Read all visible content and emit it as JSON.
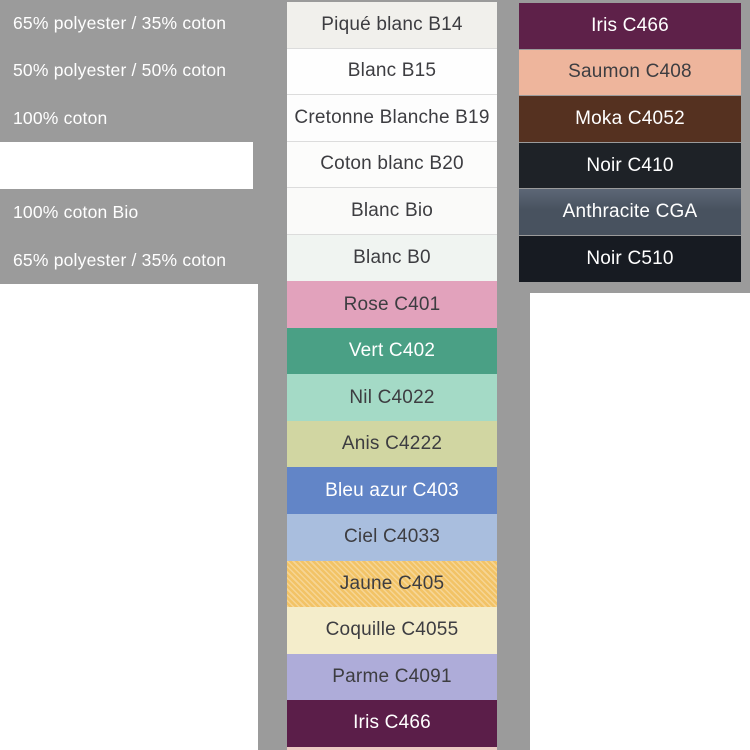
{
  "canvas": {
    "background": "#ffffff",
    "panel_color": "#9b9b9b",
    "divider_color": "#dcdcdc",
    "dark_text_color": "#3d3d41",
    "light_text_color": "#ffffff"
  },
  "composition_panel": {
    "rows": [
      {
        "label": "65% polyester / 35% coton",
        "gap": false
      },
      {
        "label": "50% polyester / 50% coton",
        "gap": false
      },
      {
        "label": "100% coton",
        "gap": false
      },
      {
        "label": "",
        "gap": true
      },
      {
        "label": "100% coton Bio",
        "gap": false
      },
      {
        "label": "65% polyester / 35% coton",
        "gap": false
      }
    ]
  },
  "middle_column": {
    "swatches": [
      {
        "label": "Piqué blanc B14",
        "color": "#f1f0ec",
        "text_color": "#3d3d41",
        "divider": true,
        "texture": false
      },
      {
        "label": "Blanc B15",
        "color": "#fefefe",
        "text_color": "#3d3d41",
        "divider": true,
        "texture": false
      },
      {
        "label": "Cretonne Blanche B19",
        "color": "#fdfdfd",
        "text_color": "#3d3d41",
        "divider": true,
        "texture": false
      },
      {
        "label": "Coton blanc B20",
        "color": "#fcfcfb",
        "text_color": "#3d3d41",
        "divider": true,
        "texture": false
      },
      {
        "label": "Blanc Bio",
        "color": "#fafaf9",
        "text_color": "#3d3d41",
        "divider": true,
        "texture": false
      },
      {
        "label": "Blanc B0",
        "color": "#f0f4f1",
        "text_color": "#3d3d41",
        "divider": false,
        "texture": false
      },
      {
        "label": "Rose C401",
        "color": "#e2a2bc",
        "text_color": "#3d3d41",
        "divider": false,
        "texture": false
      },
      {
        "label": "Vert C402",
        "color": "#4aa085",
        "text_color": "#ffffff",
        "divider": false,
        "texture": false
      },
      {
        "label": "Nil C4022",
        "color": "#a4dac6",
        "text_color": "#3d3d41",
        "divider": false,
        "texture": false
      },
      {
        "label": "Anis C4222",
        "color": "#d1d6a2",
        "text_color": "#3d3d41",
        "divider": false,
        "texture": false
      },
      {
        "label": "Bleu azur C403",
        "color": "#6285c7",
        "text_color": "#ffffff",
        "divider": false,
        "texture": false
      },
      {
        "label": "Ciel C4033",
        "color": "#a9bede",
        "text_color": "#3d3d41",
        "divider": false,
        "texture": false
      },
      {
        "label": "Jaune C405",
        "color": "#f2c366",
        "text_color": "#3d3d41",
        "divider": false,
        "texture": true
      },
      {
        "label": "Coquille C4055",
        "color": "#f4edcb",
        "text_color": "#3d3d41",
        "divider": false,
        "texture": false
      },
      {
        "label": "Parme C4091",
        "color": "#aeacd9",
        "text_color": "#3d3d41",
        "divider": false,
        "texture": false
      },
      {
        "label": "Iris C466",
        "color": "#5b1e49",
        "text_color": "#ffffff",
        "divider": false,
        "texture": false
      }
    ],
    "next_swatch_peek_color": "#ecc9c3"
  },
  "right_column": {
    "swatches": [
      {
        "label": "Iris C466",
        "color": "#5e2149",
        "text_color": "#ffffff",
        "gradient": false
      },
      {
        "label": "Saumon C408",
        "color": "#eeb59c",
        "text_color": "#3d3d41",
        "gradient": false
      },
      {
        "label": "Moka C4052",
        "color": "#553120",
        "text_color": "#ffffff",
        "gradient": false
      },
      {
        "label": "Noir C410",
        "color": "#1e2227",
        "text_color": "#ffffff",
        "gradient": false
      },
      {
        "label": "Anthracite CGA",
        "color": "#48525f",
        "text_color": "#ffffff",
        "gradient": true
      },
      {
        "label": "Noir C510",
        "color": "#171b22",
        "text_color": "#ffffff",
        "gradient": false
      }
    ]
  }
}
